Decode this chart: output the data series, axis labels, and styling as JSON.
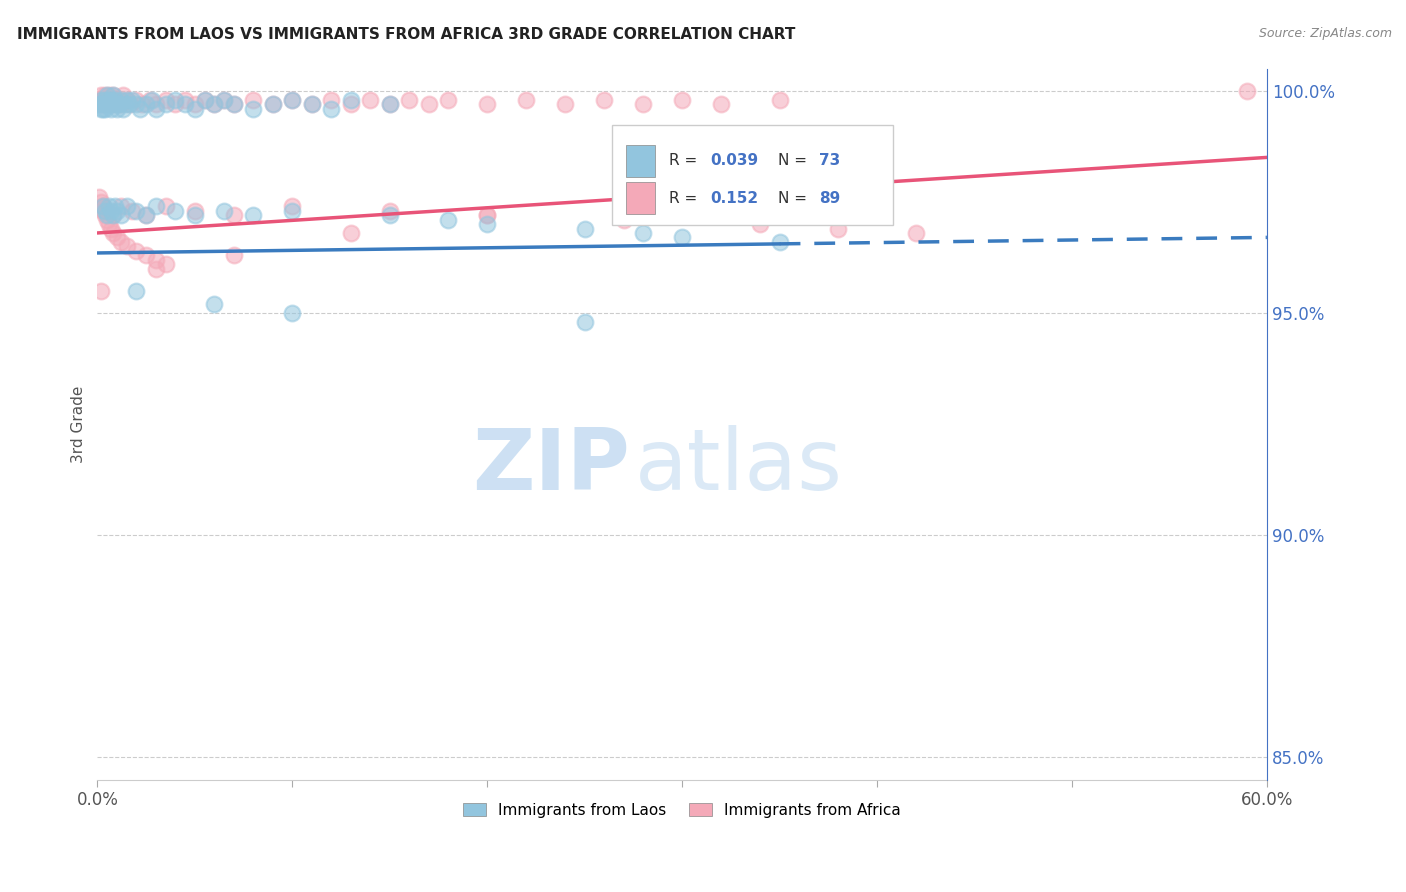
{
  "title": "IMMIGRANTS FROM LAOS VS IMMIGRANTS FROM AFRICA 3RD GRADE CORRELATION CHART",
  "source": "Source: ZipAtlas.com",
  "ylabel": "3rd Grade",
  "xlim": [
    0.0,
    0.6
  ],
  "ylim": [
    0.845,
    1.005
  ],
  "xtick_positions": [
    0.0,
    0.1,
    0.2,
    0.3,
    0.4,
    0.5,
    0.6
  ],
  "xtick_labels": [
    "0.0%",
    "",
    "",
    "",
    "",
    "",
    "60.0%"
  ],
  "yticks_right": [
    0.85,
    0.9,
    0.95,
    1.0
  ],
  "ytick_labels_right": [
    "85.0%",
    "90.0%",
    "95.0%",
    "100.0%"
  ],
  "blue_color": "#92c5de",
  "pink_color": "#f4a9b8",
  "blue_line_color": "#3a7bbf",
  "pink_line_color": "#e85478",
  "watermark_zip": "ZIP",
  "watermark_atlas": "atlas",
  "laos_x": [
    0.001,
    0.002,
    0.002,
    0.003,
    0.003,
    0.004,
    0.004,
    0.005,
    0.005,
    0.006,
    0.006,
    0.007,
    0.007,
    0.008,
    0.008,
    0.009,
    0.01,
    0.01,
    0.011,
    0.012,
    0.013,
    0.014,
    0.015,
    0.016,
    0.018,
    0.02,
    0.022,
    0.025,
    0.028,
    0.03,
    0.035,
    0.04,
    0.045,
    0.05,
    0.055,
    0.06,
    0.065,
    0.07,
    0.08,
    0.09,
    0.1,
    0.11,
    0.12,
    0.13,
    0.15,
    0.003,
    0.004,
    0.005,
    0.006,
    0.007,
    0.008,
    0.009,
    0.01,
    0.012,
    0.015,
    0.02,
    0.025,
    0.03,
    0.04,
    0.05,
    0.065,
    0.08,
    0.1,
    0.15,
    0.18,
    0.2,
    0.25,
    0.28,
    0.3,
    0.35,
    0.02,
    0.06,
    0.1,
    0.25
  ],
  "laos_y": [
    0.997,
    0.996,
    0.998,
    0.997,
    0.996,
    0.998,
    0.996,
    0.997,
    0.999,
    0.998,
    0.997,
    0.996,
    0.998,
    0.997,
    0.999,
    0.998,
    0.997,
    0.996,
    0.997,
    0.998,
    0.996,
    0.997,
    0.998,
    0.997,
    0.998,
    0.997,
    0.996,
    0.997,
    0.998,
    0.996,
    0.997,
    0.998,
    0.997,
    0.996,
    0.998,
    0.997,
    0.998,
    0.997,
    0.996,
    0.997,
    0.998,
    0.997,
    0.996,
    0.998,
    0.997,
    0.974,
    0.973,
    0.972,
    0.974,
    0.973,
    0.972,
    0.974,
    0.973,
    0.972,
    0.974,
    0.973,
    0.972,
    0.974,
    0.973,
    0.972,
    0.973,
    0.972,
    0.973,
    0.972,
    0.971,
    0.97,
    0.969,
    0.968,
    0.967,
    0.966,
    0.955,
    0.952,
    0.95,
    0.948
  ],
  "africa_x": [
    0.001,
    0.002,
    0.002,
    0.003,
    0.003,
    0.004,
    0.004,
    0.005,
    0.006,
    0.006,
    0.007,
    0.008,
    0.009,
    0.01,
    0.011,
    0.012,
    0.013,
    0.015,
    0.017,
    0.02,
    0.023,
    0.027,
    0.03,
    0.035,
    0.04,
    0.045,
    0.05,
    0.055,
    0.06,
    0.065,
    0.07,
    0.08,
    0.09,
    0.1,
    0.11,
    0.12,
    0.13,
    0.14,
    0.15,
    0.16,
    0.17,
    0.18,
    0.2,
    0.22,
    0.24,
    0.26,
    0.28,
    0.3,
    0.32,
    0.35,
    0.003,
    0.005,
    0.008,
    0.012,
    0.018,
    0.025,
    0.035,
    0.05,
    0.07,
    0.1,
    0.15,
    0.2,
    0.27,
    0.34,
    0.38,
    0.42,
    0.001,
    0.002,
    0.003,
    0.003,
    0.004,
    0.005,
    0.006,
    0.007,
    0.008,
    0.01,
    0.012,
    0.015,
    0.02,
    0.025,
    0.03,
    0.035,
    0.002,
    0.03,
    0.07,
    0.13,
    0.2,
    0.59
  ],
  "africa_y": [
    0.998,
    0.997,
    0.999,
    0.998,
    0.997,
    0.999,
    0.998,
    0.997,
    0.999,
    0.998,
    0.997,
    0.999,
    0.998,
    0.997,
    0.998,
    0.997,
    0.999,
    0.998,
    0.997,
    0.998,
    0.997,
    0.998,
    0.997,
    0.998,
    0.997,
    0.998,
    0.997,
    0.998,
    0.997,
    0.998,
    0.997,
    0.998,
    0.997,
    0.998,
    0.997,
    0.998,
    0.997,
    0.998,
    0.997,
    0.998,
    0.997,
    0.998,
    0.997,
    0.998,
    0.997,
    0.998,
    0.997,
    0.998,
    0.997,
    0.998,
    0.974,
    0.973,
    0.972,
    0.974,
    0.973,
    0.972,
    0.974,
    0.973,
    0.972,
    0.974,
    0.973,
    0.972,
    0.971,
    0.97,
    0.969,
    0.968,
    0.976,
    0.975,
    0.974,
    0.973,
    0.972,
    0.971,
    0.97,
    0.969,
    0.968,
    0.967,
    0.966,
    0.965,
    0.964,
    0.963,
    0.962,
    0.961,
    0.955,
    0.96,
    0.963,
    0.968,
    0.972,
    1.0
  ],
  "trend_laos_x0": 0.0,
  "trend_laos_x1": 0.6,
  "trend_laos_y0": 0.9635,
  "trend_laos_y1": 0.967,
  "trend_laos_solid_end": 0.35,
  "trend_africa_x0": 0.0,
  "trend_africa_x1": 0.6,
  "trend_africa_y0": 0.968,
  "trend_africa_y1": 0.985
}
